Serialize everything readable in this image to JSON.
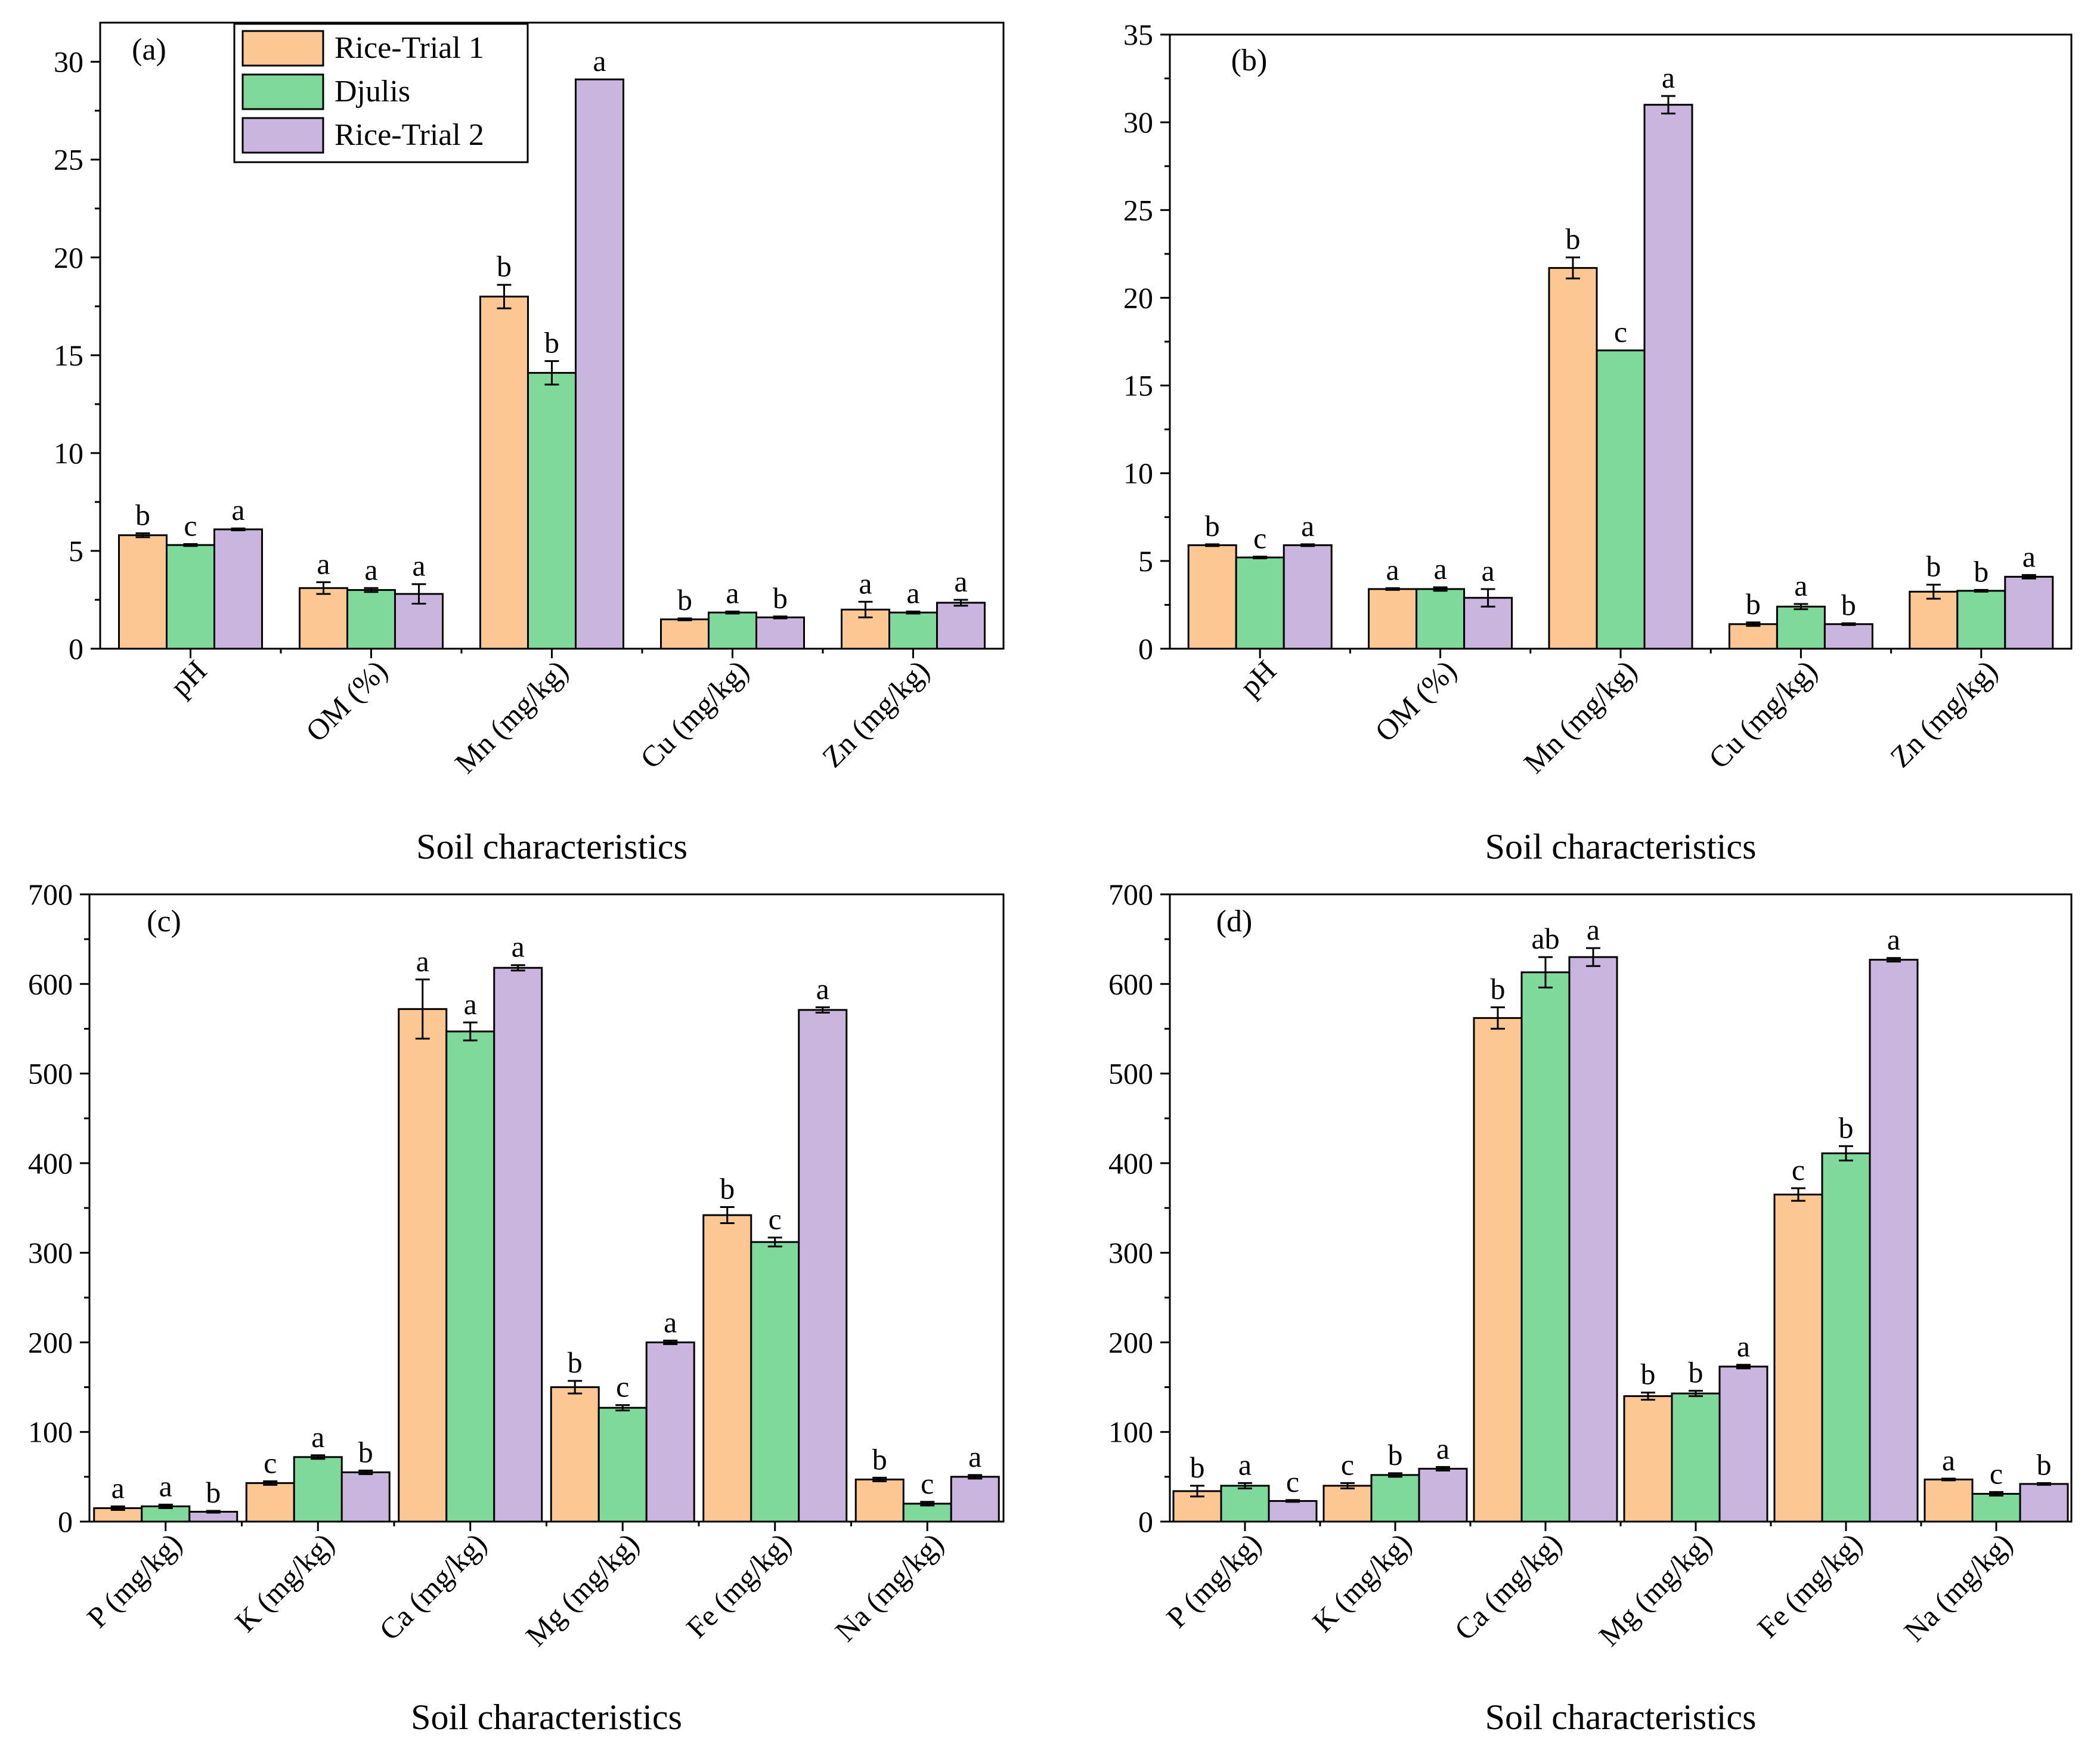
{
  "colors": {
    "Rice-Trial 1": "#FDC793",
    "Djulis": "#7FD99B",
    "Rice-Trial 2": "#C9B5DE",
    "outline": "#000000"
  },
  "legend": {
    "entries": [
      "Rice-Trial 1",
      "Djulis",
      "Rice-Trial 2"
    ],
    "placement": "top-left, inside panel (a)"
  },
  "chart_data": [
    {
      "panel": "(a)",
      "type": "bar",
      "title": "",
      "xlabel": "Soil characteristics",
      "ylabel": "",
      "ylim": [
        0,
        32
      ],
      "yticks": [
        0,
        5,
        10,
        15,
        20,
        25,
        30
      ],
      "categories": [
        "pH",
        "OM (%)",
        "Mn (mg/kg)",
        "Cu (mg/kg)",
        "Zn (mg/kg)"
      ],
      "series": [
        {
          "name": "Rice-Trial 1",
          "values": [
            5.8,
            3.1,
            18.0,
            1.5,
            2.0
          ],
          "errors": [
            0.1,
            0.3,
            0.6,
            0.05,
            0.4
          ],
          "letters": [
            "b",
            "a",
            "b",
            "b",
            "a"
          ]
        },
        {
          "name": "Djulis",
          "values": [
            5.3,
            3.0,
            14.1,
            1.85,
            1.85
          ],
          "errors": [
            0.05,
            0.1,
            0.6,
            0.05,
            0.05
          ],
          "letters": [
            "c",
            "a",
            "b",
            "a",
            "a"
          ]
        },
        {
          "name": "Rice-Trial 2",
          "values": [
            6.1,
            2.8,
            29.1,
            1.6,
            2.35
          ],
          "errors": [
            0.05,
            0.5,
            0.0,
            0.05,
            0.15
          ],
          "letters": [
            "a",
            "a",
            "a",
            "b",
            "a"
          ]
        }
      ]
    },
    {
      "panel": "(b)",
      "type": "bar",
      "title": "",
      "xlabel": "Soil characteristics",
      "ylabel": "",
      "ylim": [
        0,
        35
      ],
      "yticks": [
        0,
        5,
        10,
        15,
        20,
        25,
        30,
        35
      ],
      "categories": [
        "pH",
        "OM (%)",
        "Mn (mg/kg)",
        "Cu (mg/kg)",
        "Zn (mg/kg)"
      ],
      "series": [
        {
          "name": "Rice-Trial 1",
          "values": [
            5.9,
            3.4,
            21.7,
            1.4,
            3.25
          ],
          "errors": [
            0.05,
            0.05,
            0.6,
            0.1,
            0.4
          ],
          "letters": [
            "b",
            "a",
            "b",
            "b",
            "b"
          ]
        },
        {
          "name": "Djulis",
          "values": [
            5.2,
            3.4,
            17.0,
            2.4,
            3.3
          ],
          "errors": [
            0.05,
            0.1,
            0.0,
            0.15,
            0.05
          ],
          "letters": [
            "c",
            "a",
            "c",
            "a",
            "b"
          ]
        },
        {
          "name": "Rice-Trial 2",
          "values": [
            5.9,
            2.9,
            31.0,
            1.4,
            4.1
          ],
          "errors": [
            0.05,
            0.5,
            0.5,
            0.05,
            0.1
          ],
          "letters": [
            "a",
            "a",
            "a",
            "b",
            "a"
          ]
        }
      ]
    },
    {
      "panel": "(c)",
      "type": "bar",
      "title": "",
      "xlabel": "Soil characteristics",
      "ylabel": "",
      "ylim": [
        0,
        700
      ],
      "yticks": [
        0,
        100,
        200,
        300,
        400,
        500,
        600,
        700
      ],
      "categories": [
        "P (mg/kg)",
        "K (mg/kg)",
        "Ca (mg/kg)",
        "Mg (mg/kg)",
        "Fe (mg/kg)",
        "Na (mg/kg)"
      ],
      "series": [
        {
          "name": "Rice-Trial 1",
          "values": [
            15,
            43,
            572,
            150,
            342,
            47
          ],
          "errors": [
            2,
            2,
            33,
            7,
            9,
            2
          ],
          "letters": [
            "a",
            "c",
            "a",
            "b",
            "b",
            "b"
          ]
        },
        {
          "name": "Djulis",
          "values": [
            17,
            72,
            547,
            127,
            312,
            20
          ],
          "errors": [
            2,
            2,
            10,
            3,
            5,
            2
          ],
          "letters": [
            "a",
            "a",
            "a",
            "c",
            "c",
            "c"
          ]
        },
        {
          "name": "Rice-Trial 2",
          "values": [
            11,
            55,
            618,
            200,
            571,
            50
          ],
          "errors": [
            1,
            2,
            3,
            2,
            3,
            2
          ],
          "letters": [
            "b",
            "b",
            "a",
            "a",
            "a",
            "a"
          ]
        }
      ]
    },
    {
      "panel": "(d)",
      "type": "bar",
      "title": "",
      "xlabel": "Soil characteristics",
      "ylabel": "",
      "ylim": [
        0,
        700
      ],
      "yticks": [
        0,
        100,
        200,
        300,
        400,
        500,
        600,
        700
      ],
      "categories": [
        "P (mg/kg)",
        "K (mg/kg)",
        "Ca (mg/kg)",
        "Mg (mg/kg)",
        "Fe (mg/kg)",
        "Na (mg/kg)"
      ],
      "series": [
        {
          "name": "Rice-Trial 1",
          "values": [
            34,
            40,
            562,
            140,
            365,
            47
          ],
          "errors": [
            6,
            3,
            12,
            4,
            7,
            1
          ],
          "letters": [
            "b",
            "c",
            "b",
            "b",
            "c",
            "a"
          ]
        },
        {
          "name": "Djulis",
          "values": [
            40,
            52,
            613,
            143,
            411,
            31
          ],
          "errors": [
            3,
            2,
            17,
            3,
            8,
            2
          ],
          "letters": [
            "a",
            "b",
            "ab",
            "b",
            "b",
            "c"
          ]
        },
        {
          "name": "Rice-Trial 2",
          "values": [
            23,
            59,
            630,
            173,
            627,
            42
          ],
          "errors": [
            1,
            2,
            10,
            2,
            2,
            1
          ],
          "letters": [
            "c",
            "a",
            "a",
            "a",
            "a",
            "b"
          ]
        }
      ]
    }
  ]
}
